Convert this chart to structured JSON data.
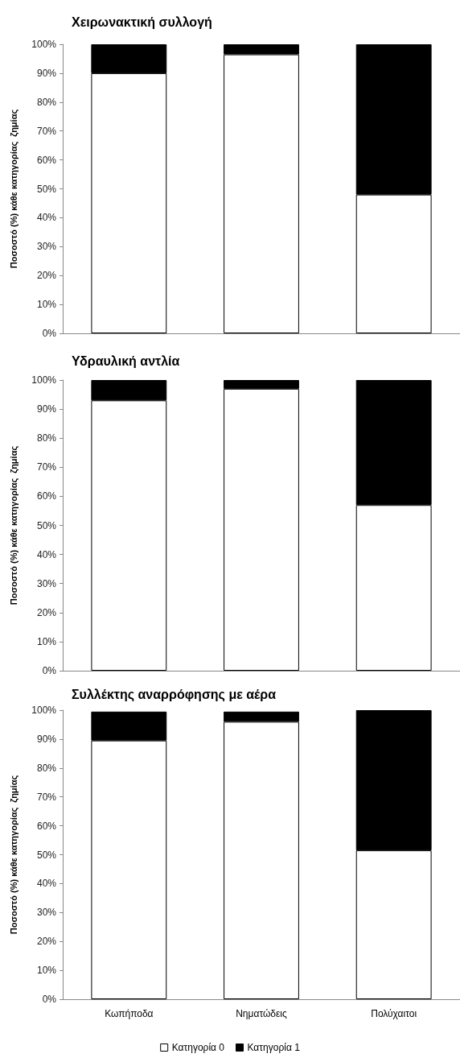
{
  "chart_data": [
    {
      "type": "bar",
      "title": "Χειρωνακτική συλλογή",
      "ylabel": "Ποσοστό (%) κάθε κατηγορίας  ζημίας",
      "categories": [
        null,
        null,
        null
      ],
      "stacked": true,
      "tick_labels": "y",
      "grid": false,
      "legend": false,
      "ylim": [
        0,
        100
      ],
      "yticks": [
        {
          "value": 0,
          "label": "0%"
        },
        {
          "value": 10,
          "label": "10%"
        },
        {
          "value": 20,
          "label": "20%"
        },
        {
          "value": 30,
          "label": "30%"
        },
        {
          "value": 40,
          "label": "40%"
        },
        {
          "value": 50,
          "label": "50%"
        },
        {
          "value": 60,
          "label": "60%"
        },
        {
          "value": 70,
          "label": "70%"
        },
        {
          "value": 80,
          "label": "80%"
        },
        {
          "value": 90,
          "label": "90%"
        },
        {
          "value": 100,
          "label": "100%"
        }
      ],
      "series": [
        {
          "color": "#ffffff",
          "values": [
            90,
            96.5,
            48
          ]
        },
        {
          "color": "#000000",
          "values": [
            10,
            3.5,
            52
          ]
        }
      ]
    },
    {
      "type": "bar",
      "title": "Υδραυλική αντλία",
      "ylabel": "Ποσοστό (%) κάθε κατηγορίας  ζημίας",
      "categories": [
        null,
        null,
        null
      ],
      "stacked": true,
      "tick_labels": "y",
      "grid": false,
      "legend": false,
      "ylim": [
        0,
        100
      ],
      "yticks": [
        {
          "value": 0,
          "label": "0%"
        },
        {
          "value": 10,
          "label": "10%"
        },
        {
          "value": 20,
          "label": "20%"
        },
        {
          "value": 30,
          "label": "30%"
        },
        {
          "value": 40,
          "label": "40%"
        },
        {
          "value": 50,
          "label": "50%"
        },
        {
          "value": 60,
          "label": "60%"
        },
        {
          "value": 70,
          "label": "70%"
        },
        {
          "value": 80,
          "label": "80%"
        },
        {
          "value": 90,
          "label": "90%"
        },
        {
          "value": 100,
          "label": "100%"
        }
      ],
      "series": [
        {
          "color": "#ffffff",
          "values": [
            93,
            97,
            57
          ]
        },
        {
          "color": "#000000",
          "values": [
            7,
            3,
            43
          ]
        }
      ]
    },
    {
      "type": "bar",
      "title": "Συλλέκτης αναρρόφησης με αέρα",
      "ylabel": "Ποσοστό (%) κάθε κατηγορίας  ζημίας",
      "categories": [
        "Κωπήποδα",
        "Νηματώδεις",
        "Πολύχαιτοι"
      ],
      "stacked": true,
      "grid": false,
      "legend": "bottom",
      "ylim": [
        0,
        100
      ],
      "yticks": [
        {
          "value": 0,
          "label": "0%"
        },
        {
          "value": 10,
          "label": "10%"
        },
        {
          "value": 20,
          "label": "20%"
        },
        {
          "value": 30,
          "label": "30%"
        },
        {
          "value": 40,
          "label": "40%"
        },
        {
          "value": 50,
          "label": "50%"
        },
        {
          "value": 60,
          "label": "60%"
        },
        {
          "value": 70,
          "label": "70%"
        },
        {
          "value": 80,
          "label": "80%"
        },
        {
          "value": 90,
          "label": "90%"
        },
        {
          "value": 100,
          "label": "100%"
        }
      ],
      "series": [
        {
          "name": "Κατηγορία 0",
          "color": "#ffffff",
          "values": [
            89.5,
            96,
            51.5
          ]
        },
        {
          "name": "Κατηγορία 1",
          "color": "#000000",
          "values": [
            10,
            3.5,
            48.5
          ]
        }
      ]
    }
  ]
}
